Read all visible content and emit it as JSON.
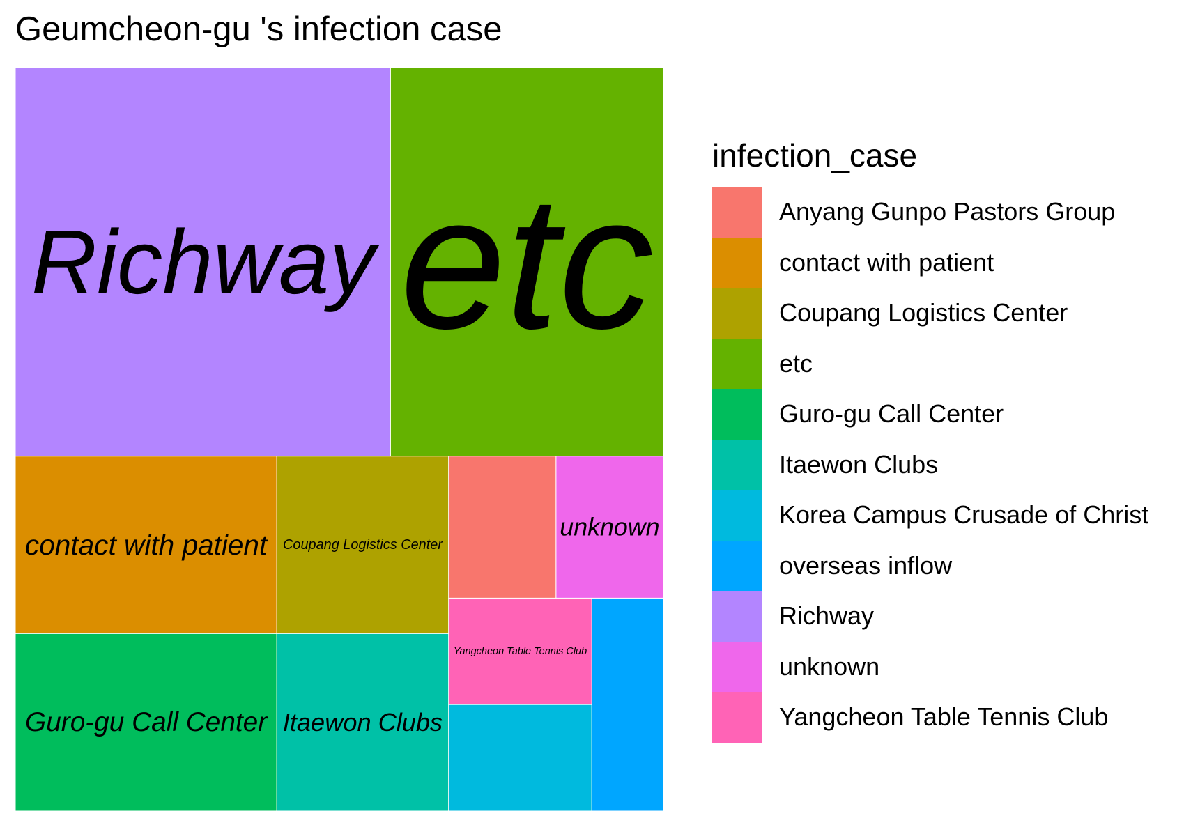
{
  "chart_data": {
    "type": "treemap",
    "title": "Geumcheon-gu 's infection case",
    "legend": {
      "title": "infection_case",
      "position": "right",
      "entries": [
        {
          "label": "Anyang Gunpo Pastors Group",
          "color": "#F8766D"
        },
        {
          "label": "contact with patient",
          "color": "#DB8E00"
        },
        {
          "label": "Coupang Logistics Center",
          "color": "#AEA200"
        },
        {
          "label": "etc",
          "color": "#64B200"
        },
        {
          "label": "Guro-gu Call Center",
          "color": "#00BD5C"
        },
        {
          "label": "Itaewon Clubs",
          "color": "#00C1A7"
        },
        {
          "label": "Korea Campus Crusade of Christ",
          "color": "#00BADE"
        },
        {
          "label": "overseas inflow",
          "color": "#00A6FF"
        },
        {
          "label": "Richway",
          "color": "#B385FF"
        },
        {
          "label": "unknown",
          "color": "#EF67EB"
        },
        {
          "label": "Yangcheon Table Tennis Club",
          "color": "#FF63B6"
        }
      ]
    },
    "tiles": [
      {
        "category": "Richway",
        "value": 22,
        "color": "#B385FF",
        "label": "Richway"
      },
      {
        "category": "etc",
        "value": 16,
        "color": "#64B200",
        "label": "etc"
      },
      {
        "category": "contact with patient",
        "value": 7,
        "color": "#DB8E00",
        "label": "contact with patient"
      },
      {
        "category": "Guro-gu Call Center",
        "value": 7,
        "color": "#00BD5C",
        "label": "Guro-gu Call Center"
      },
      {
        "category": "Coupang Logistics Center",
        "value": 4.6,
        "color": "#AEA200",
        "label": "Coupang Logistics Center"
      },
      {
        "category": "Itaewon Clubs",
        "value": 4.6,
        "color": "#00C1A7",
        "label": "Itaewon Clubs"
      },
      {
        "category": "Anyang Gunpo Pastors Group",
        "value": 2.3,
        "color": "#F8766D",
        "label": ""
      },
      {
        "category": "unknown",
        "value": 2.3,
        "color": "#EF67EB",
        "label": "unknown"
      },
      {
        "category": "Yangcheon Table Tennis Club",
        "value": 2.3,
        "color": "#FF63B6",
        "label": "Yangcheon Table Tennis Club"
      },
      {
        "category": "Korea Campus Crusade of Christ",
        "value": 2.3,
        "color": "#00BADE",
        "label": ""
      },
      {
        "category": "overseas inflow",
        "value": 2.3,
        "color": "#00A6FF",
        "label": ""
      }
    ]
  }
}
